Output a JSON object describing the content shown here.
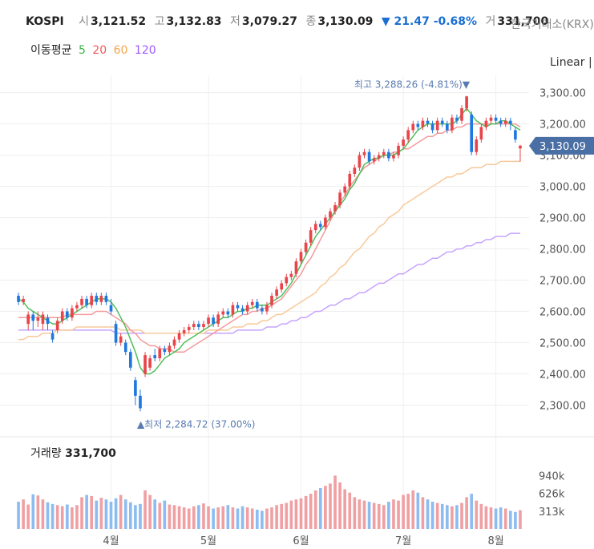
{
  "header": {
    "symbol": "KOSPI",
    "open_label": "시",
    "open": "3,121.52",
    "high_label": "고",
    "high": "3,132.83",
    "low_label": "저",
    "low": "3,079.27",
    "close_label": "종",
    "close": "3,130.09",
    "change": "▼ 21.47 -0.68%",
    "volume_label": "거",
    "volume": "331,700",
    "exchange": "한국거래소(KRX)"
  },
  "ma_legend": {
    "title": "이동평균",
    "periods": [
      {
        "label": "5",
        "color": "#3bb54a"
      },
      {
        "label": "20",
        "color": "#f0575a"
      },
      {
        "label": "60",
        "color": "#f4a64a"
      },
      {
        "label": "120",
        "color": "#9b59ff"
      }
    ]
  },
  "scale_label": "Linear",
  "colors": {
    "up": "#e8444a",
    "down": "#1f78e0",
    "up_vol": "#f0a0a3",
    "down_vol": "#8cbcf0",
    "current_tag": "#4a6fa5"
  },
  "chart_data": {
    "type": "candlestick",
    "y_ticks": [
      "3,300.00",
      "3,200.00",
      "3,100.00",
      "3,000.00",
      "2,900.00",
      "2,800.00",
      "2,700.00",
      "2,600.00",
      "2,500.00",
      "2,400.00",
      "2,300.00"
    ],
    "ylim": [
      2250,
      3340
    ],
    "x_labels": [
      "4월",
      "5월",
      "6월",
      "7월",
      "8월"
    ],
    "x_label_index": [
      19,
      39,
      58,
      79,
      98
    ],
    "max_annotation": "최고 3,288.26 (-4.81%)▼",
    "min_annotation": "▲최저 2,284.72 (37.00%)",
    "current_price": "3,130.09",
    "candles": [
      [
        2650,
        2630,
        2660,
        2620
      ],
      [
        2630,
        2640,
        2650,
        2620
      ],
      [
        2560,
        2590,
        2600,
        2540
      ],
      [
        2590,
        2570,
        2600,
        2540
      ],
      [
        2570,
        2580,
        2600,
        2550
      ],
      [
        2560,
        2590,
        2600,
        2540
      ],
      [
        2580,
        2560,
        2590,
        2540
      ],
      [
        2530,
        2510,
        2540,
        2500
      ],
      [
        2540,
        2570,
        2580,
        2530
      ],
      [
        2570,
        2600,
        2610,
        2560
      ],
      [
        2600,
        2580,
        2610,
        2570
      ],
      [
        2580,
        2610,
        2620,
        2570
      ],
      [
        2610,
        2620,
        2630,
        2600
      ],
      [
        2620,
        2640,
        2650,
        2610
      ],
      [
        2640,
        2620,
        2650,
        2610
      ],
      [
        2620,
        2650,
        2660,
        2610
      ],
      [
        2650,
        2630,
        2660,
        2620
      ],
      [
        2630,
        2650,
        2660,
        2620
      ],
      [
        2650,
        2630,
        2660,
        2620
      ],
      [
        2620,
        2600,
        2640,
        2590
      ],
      [
        2560,
        2500,
        2570,
        2490
      ],
      [
        2500,
        2520,
        2530,
        2490
      ],
      [
        2500,
        2470,
        2510,
        2460
      ],
      [
        2470,
        2420,
        2480,
        2410
      ],
      [
        2380,
        2330,
        2390,
        2300
      ],
      [
        2330,
        2290,
        2350,
        2280
      ],
      [
        2400,
        2460,
        2470,
        2390
      ],
      [
        2420,
        2450,
        2460,
        2410
      ],
      [
        2460,
        2450,
        2480,
        2440
      ],
      [
        2450,
        2480,
        2490,
        2440
      ],
      [
        2480,
        2470,
        2490,
        2460
      ],
      [
        2470,
        2490,
        2500,
        2460
      ],
      [
        2490,
        2510,
        2520,
        2480
      ],
      [
        2510,
        2530,
        2540,
        2500
      ],
      [
        2530,
        2540,
        2550,
        2520
      ],
      [
        2540,
        2550,
        2560,
        2530
      ],
      [
        2550,
        2560,
        2570,
        2540
      ],
      [
        2560,
        2550,
        2570,
        2540
      ],
      [
        2550,
        2560,
        2570,
        2540
      ],
      [
        2560,
        2580,
        2590,
        2550
      ],
      [
        2580,
        2560,
        2590,
        2550
      ],
      [
        2560,
        2590,
        2600,
        2550
      ],
      [
        2590,
        2600,
        2610,
        2580
      ],
      [
        2600,
        2590,
        2610,
        2580
      ],
      [
        2590,
        2620,
        2630,
        2580
      ],
      [
        2620,
        2610,
        2630,
        2600
      ],
      [
        2610,
        2600,
        2620,
        2590
      ],
      [
        2600,
        2620,
        2630,
        2590
      ],
      [
        2620,
        2630,
        2640,
        2610
      ],
      [
        2630,
        2610,
        2640,
        2600
      ],
      [
        2610,
        2600,
        2620,
        2590
      ],
      [
        2600,
        2620,
        2630,
        2590
      ],
      [
        2620,
        2650,
        2660,
        2610
      ],
      [
        2650,
        2670,
        2680,
        2640
      ],
      [
        2670,
        2690,
        2700,
        2660
      ],
      [
        2690,
        2710,
        2720,
        2680
      ],
      [
        2710,
        2720,
        2730,
        2700
      ],
      [
        2720,
        2760,
        2770,
        2710
      ],
      [
        2760,
        2790,
        2800,
        2750
      ],
      [
        2790,
        2820,
        2830,
        2780
      ],
      [
        2820,
        2860,
        2870,
        2810
      ],
      [
        2860,
        2880,
        2890,
        2850
      ],
      [
        2880,
        2870,
        2890,
        2860
      ],
      [
        2870,
        2900,
        2910,
        2860
      ],
      [
        2900,
        2920,
        2930,
        2890
      ],
      [
        2920,
        2940,
        2950,
        2910
      ],
      [
        2940,
        2980,
        2990,
        2930
      ],
      [
        2980,
        3000,
        3010,
        2970
      ],
      [
        3000,
        3040,
        3050,
        2990
      ],
      [
        3040,
        3060,
        3070,
        3030
      ],
      [
        3060,
        3100,
        3110,
        3050
      ],
      [
        3100,
        3110,
        3120,
        3090
      ],
      [
        3110,
        3080,
        3120,
        3070
      ],
      [
        3080,
        3090,
        3100,
        3070
      ],
      [
        3090,
        3100,
        3110,
        3080
      ],
      [
        3100,
        3110,
        3120,
        3090
      ],
      [
        3110,
        3090,
        3120,
        3080
      ],
      [
        3090,
        3100,
        3110,
        3080
      ],
      [
        3100,
        3130,
        3140,
        3090
      ],
      [
        3130,
        3150,
        3160,
        3120
      ],
      [
        3150,
        3180,
        3190,
        3140
      ],
      [
        3180,
        3200,
        3210,
        3170
      ],
      [
        3200,
        3190,
        3210,
        3180
      ],
      [
        3190,
        3210,
        3220,
        3180
      ],
      [
        3210,
        3200,
        3220,
        3190
      ],
      [
        3200,
        3180,
        3210,
        3170
      ],
      [
        3180,
        3210,
        3220,
        3170
      ],
      [
        3210,
        3200,
        3220,
        3190
      ],
      [
        3200,
        3180,
        3210,
        3170
      ],
      [
        3180,
        3220,
        3230,
        3170
      ],
      [
        3220,
        3210,
        3230,
        3200
      ],
      [
        3210,
        3250,
        3260,
        3200
      ],
      [
        3250,
        3288,
        3290,
        3240
      ],
      [
        3230,
        3110,
        3240,
        3100
      ],
      [
        3110,
        3150,
        3160,
        3100
      ],
      [
        3150,
        3190,
        3200,
        3140
      ],
      [
        3190,
        3210,
        3220,
        3180
      ],
      [
        3210,
        3220,
        3230,
        3200
      ],
      [
        3220,
        3210,
        3230,
        3200
      ],
      [
        3210,
        3200,
        3220,
        3190
      ],
      [
        3200,
        3210,
        3220,
        3190
      ],
      [
        3210,
        3200,
        3220,
        3180
      ],
      [
        3180,
        3150,
        3190,
        3140
      ],
      [
        3121.52,
        3130.09,
        3132.83,
        3079.27
      ]
    ],
    "ma5": [
      2640,
      2630,
      2610,
      2600,
      2590,
      2580,
      2570,
      2560,
      2560,
      2570,
      2580,
      2590,
      2600,
      2610,
      2620,
      2630,
      2640,
      2640,
      2640,
      2630,
      2610,
      2580,
      2550,
      2510,
      2470,
      2420,
      2400,
      2400,
      2410,
      2430,
      2450,
      2460,
      2470,
      2480,
      2500,
      2510,
      2520,
      2530,
      2540,
      2550,
      2560,
      2570,
      2580,
      2580,
      2590,
      2600,
      2600,
      2610,
      2610,
      2620,
      2620,
      2620,
      2630,
      2640,
      2650,
      2670,
      2690,
      2720,
      2750,
      2780,
      2810,
      2840,
      2860,
      2880,
      2900,
      2920,
      2940,
      2960,
      2990,
      3010,
      3040,
      3070,
      3080,
      3090,
      3090,
      3100,
      3100,
      3100,
      3110,
      3120,
      3140,
      3160,
      3180,
      3190,
      3200,
      3200,
      3200,
      3200,
      3200,
      3200,
      3210,
      3230,
      3250,
      3230,
      3210,
      3200,
      3190,
      3200,
      3200,
      3210,
      3210,
      3200,
      3190,
      3180
    ],
    "ma20": [
      2580,
      2580,
      2580,
      2580,
      2580,
      2580,
      2580,
      2580,
      2580,
      2580,
      2590,
      2590,
      2590,
      2590,
      2590,
      2590,
      2600,
      2600,
      2600,
      2590,
      2580,
      2570,
      2560,
      2540,
      2530,
      2510,
      2500,
      2490,
      2490,
      2480,
      2480,
      2480,
      2470,
      2470,
      2470,
      2480,
      2490,
      2500,
      2510,
      2520,
      2530,
      2540,
      2550,
      2560,
      2570,
      2580,
      2590,
      2590,
      2600,
      2600,
      2610,
      2610,
      2620,
      2630,
      2640,
      2660,
      2680,
      2700,
      2720,
      2750,
      2770,
      2800,
      2830,
      2860,
      2890,
      2920,
      2950,
      2970,
      3000,
      3020,
      3040,
      3060,
      3070,
      3080,
      3090,
      3100,
      3100,
      3110,
      3110,
      3120,
      3120,
      3130,
      3140,
      3150,
      3160,
      3160,
      3170,
      3170,
      3180,
      3180,
      3190,
      3190,
      3200,
      3200,
      3200,
      3200,
      3200,
      3200,
      3200,
      3200,
      3200,
      3200,
      3200,
      3190
    ],
    "ma60": [
      2510,
      2510,
      2520,
      2520,
      2520,
      2530,
      2530,
      2530,
      2540,
      2540,
      2540,
      2540,
      2550,
      2550,
      2550,
      2550,
      2550,
      2550,
      2550,
      2550,
      2550,
      2540,
      2540,
      2540,
      2540,
      2540,
      2530,
      2530,
      2530,
      2530,
      2530,
      2530,
      2530,
      2530,
      2530,
      2530,
      2530,
      2530,
      2530,
      2540,
      2540,
      2540,
      2540,
      2540,
      2550,
      2550,
      2550,
      2560,
      2560,
      2560,
      2570,
      2570,
      2580,
      2590,
      2590,
      2600,
      2610,
      2620,
      2630,
      2640,
      2650,
      2660,
      2680,
      2690,
      2710,
      2720,
      2740,
      2750,
      2770,
      2790,
      2800,
      2820,
      2840,
      2850,
      2870,
      2880,
      2900,
      2910,
      2920,
      2940,
      2950,
      2960,
      2970,
      2980,
      2990,
      3000,
      3010,
      3020,
      3030,
      3030,
      3040,
      3040,
      3050,
      3060,
      3060,
      3060,
      3070,
      3070,
      3070,
      3080,
      3080,
      3080,
      3080,
      3080
    ],
    "ma120": [
      2540,
      2540,
      2540,
      2540,
      2540,
      2540,
      2540,
      2540,
      2540,
      2540,
      2540,
      2540,
      2540,
      2540,
      2540,
      2540,
      2540,
      2540,
      2540,
      2540,
      2530,
      2530,
      2530,
      2530,
      2530,
      2530,
      2530,
      2530,
      2530,
      2530,
      2530,
      2530,
      2530,
      2530,
      2530,
      2530,
      2530,
      2530,
      2530,
      2530,
      2530,
      2530,
      2530,
      2530,
      2530,
      2540,
      2540,
      2540,
      2540,
      2540,
      2540,
      2550,
      2550,
      2550,
      2560,
      2560,
      2570,
      2570,
      2580,
      2580,
      2590,
      2600,
      2600,
      2610,
      2620,
      2620,
      2630,
      2640,
      2640,
      2650,
      2660,
      2660,
      2670,
      2680,
      2690,
      2690,
      2700,
      2710,
      2720,
      2720,
      2730,
      2740,
      2750,
      2750,
      2760,
      2770,
      2770,
      2780,
      2790,
      2790,
      2800,
      2800,
      2810,
      2810,
      2820,
      2820,
      2830,
      2830,
      2840,
      2840,
      2840,
      2850,
      2850,
      2850
    ],
    "volume": {
      "title": "거래량",
      "value": "331,700",
      "ticks": [
        "940k",
        "626k",
        "313k"
      ],
      "ylim": [
        0,
        1200
      ],
      "values": [
        480,
        520,
        430,
        610,
        590,
        520,
        470,
        440,
        420,
        400,
        430,
        380,
        420,
        560,
        600,
        580,
        500,
        550,
        520,
        480,
        540,
        600,
        520,
        470,
        420,
        440,
        680,
        600,
        520,
        460,
        500,
        430,
        420,
        400,
        380,
        360,
        400,
        420,
        450,
        400,
        360,
        380,
        400,
        420,
        380,
        360,
        400,
        380,
        360,
        340,
        320,
        360,
        380,
        420,
        440,
        460,
        500,
        520,
        540,
        580,
        620,
        680,
        720,
        760,
        800,
        940,
        820,
        700,
        640,
        560,
        520,
        500,
        480,
        460,
        440,
        420,
        480,
        520,
        500,
        600,
        620,
        680,
        640,
        560,
        520,
        480,
        460,
        440,
        420,
        400,
        420,
        460,
        560,
        620,
        500,
        440,
        400,
        380,
        360,
        380,
        360,
        320,
        300,
        331
      ]
    }
  }
}
